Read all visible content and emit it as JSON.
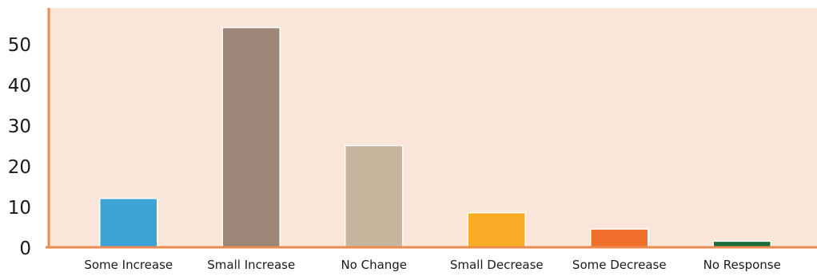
{
  "chart_data": {
    "type": "bar",
    "title": "",
    "xlabel": "",
    "ylabel": "",
    "categories": [
      "Some Increase",
      "Small Increase",
      "No Change",
      "Small Decrease",
      "Some Decrease",
      "No Response"
    ],
    "values": [
      12,
      54,
      25,
      8.5,
      4.5,
      1.5
    ],
    "bar_colors": [
      "#3da2d5",
      "#9c8677",
      "#c5b59d",
      "#f9ad26",
      "#ef6f2b",
      "#196e39"
    ],
    "ylim": [
      0,
      58
    ],
    "yticks": [
      0,
      10,
      20,
      30,
      40,
      50
    ],
    "grid": false,
    "legend": "none",
    "plot_background": "#fae5d9",
    "axis_color": "#ee8a4f",
    "bar_border_color": "#ffffff"
  }
}
